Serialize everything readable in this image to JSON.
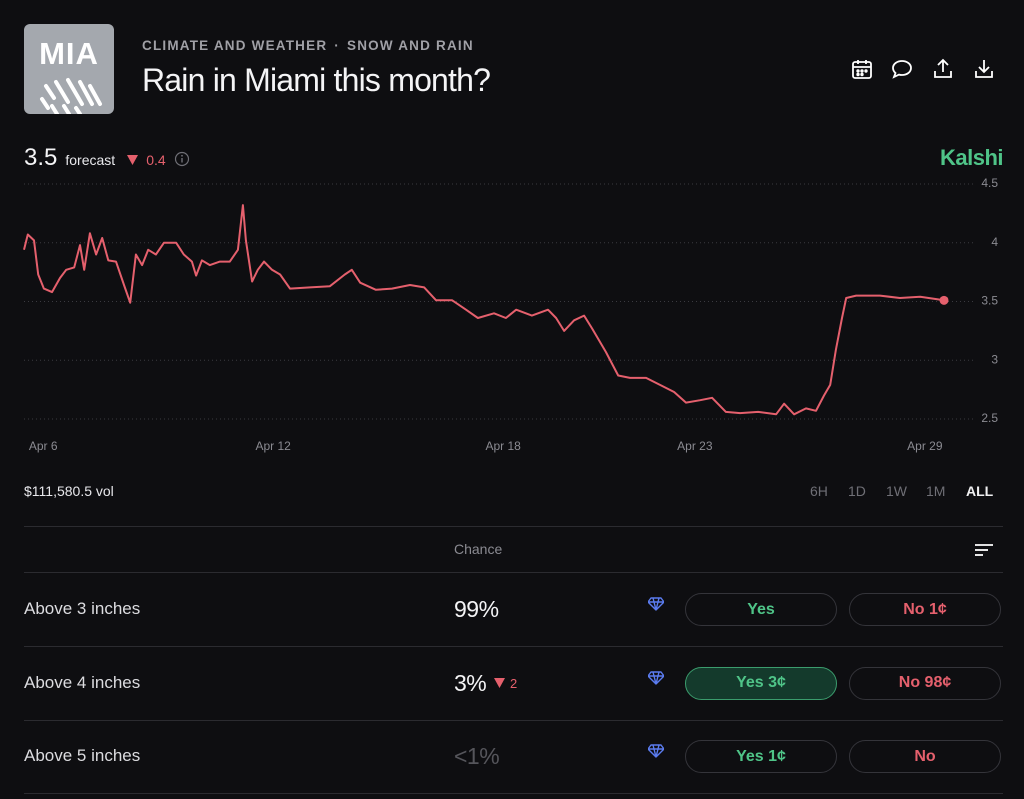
{
  "header": {
    "icon_label": "MIA",
    "category": "CLIMATE AND WEATHER",
    "separator": "·",
    "subcategory": "SNOW AND RAIN",
    "title": "Rain in Miami this month?"
  },
  "forecast": {
    "value": "3.5",
    "label": "forecast",
    "change": "0.4"
  },
  "brand": "Kalshi",
  "chart_data": {
    "type": "line",
    "x": [
      5.5,
      5.6,
      5.76,
      5.87,
      6.02,
      6.23,
      6.44,
      6.6,
      6.81,
      6.96,
      7.07,
      7.22,
      7.38,
      7.54,
      7.7,
      7.9,
      8.11,
      8.27,
      8.42,
      8.58,
      8.74,
      8.94,
      9.15,
      9.47,
      9.67,
      9.88,
      9.99,
      10.14,
      10.35,
      10.61,
      10.87,
      11.08,
      11.21,
      11.29,
      11.45,
      11.6,
      11.76,
      11.97,
      12.18,
      12.44,
      12.96,
      13.48,
      13.87,
      14.05,
      14.27,
      14.68,
      15.1,
      15.57,
      15.94,
      16.25,
      16.67,
      17.03,
      17.34,
      17.76,
      18.07,
      18.34,
      18.75,
      19.17,
      19.38,
      19.59,
      19.85,
      20.11,
      20.32,
      20.68,
      21.0,
      21.31,
      21.73,
      22.09,
      22.46,
      22.77,
      23.14,
      23.45,
      23.81,
      24.18,
      24.65,
      25.12,
      25.33,
      25.59,
      25.9,
      26.16,
      26.37,
      26.53,
      26.68,
      26.84,
      26.95,
      27.21,
      27.83,
      28.35,
      28.88,
      29.5
    ],
    "series": [
      {
        "color": "#e5606d",
        "values": [
          3.94,
          4.07,
          4.02,
          3.73,
          3.61,
          3.58,
          3.7,
          3.77,
          3.79,
          3.98,
          3.77,
          4.08,
          3.9,
          4.04,
          3.85,
          3.84,
          3.64,
          3.49,
          3.9,
          3.81,
          3.94,
          3.9,
          4.0,
          4.0,
          3.9,
          3.84,
          3.72,
          3.85,
          3.81,
          3.84,
          3.84,
          3.94,
          4.32,
          4.02,
          3.67,
          3.77,
          3.84,
          3.77,
          3.73,
          3.61,
          3.62,
          3.63,
          3.73,
          3.77,
          3.66,
          3.6,
          3.61,
          3.64,
          3.62,
          3.51,
          3.51,
          3.43,
          3.36,
          3.4,
          3.36,
          3.43,
          3.38,
          3.43,
          3.36,
          3.25,
          3.34,
          3.38,
          3.27,
          3.07,
          2.87,
          2.85,
          2.85,
          2.79,
          2.73,
          2.64,
          2.66,
          2.68,
          2.56,
          2.55,
          2.56,
          2.54,
          2.63,
          2.54,
          2.59,
          2.57,
          2.7,
          2.79,
          3.09,
          3.36,
          3.53,
          3.55,
          3.55,
          3.53,
          3.54,
          3.51
        ]
      }
    ],
    "xlim": [
      5.5,
      29.5
    ],
    "xticks": [
      {
        "value": 6,
        "label": "Apr 6"
      },
      {
        "value": 12,
        "label": "Apr 12"
      },
      {
        "value": 18,
        "label": "Apr 18"
      },
      {
        "value": 23,
        "label": "Apr 23"
      },
      {
        "value": 29,
        "label": "Apr 29"
      }
    ],
    "ylim": [
      2.5,
      4.5
    ],
    "yticks": [
      2.5,
      3,
      3.5,
      4,
      4.5
    ],
    "grid": true,
    "end_marker": true
  },
  "volume": "$111,580.5 vol",
  "ranges": [
    "6H",
    "1D",
    "1W",
    "1M",
    "ALL"
  ],
  "active_range": 4,
  "table": {
    "header": "Chance",
    "rows": [
      {
        "label": "Above 3 inches",
        "chance": "99%",
        "yes": "Yes",
        "no": "No 1¢"
      },
      {
        "label": "Above 4 inches",
        "chance": "3%",
        "change": "2",
        "yes": "Yes 3¢",
        "no": "No 98¢",
        "selected": "yes"
      },
      {
        "label": "Above 5 inches",
        "chance": "<1%",
        "yes": "Yes 1¢",
        "no": "No",
        "muted": true
      }
    ]
  }
}
